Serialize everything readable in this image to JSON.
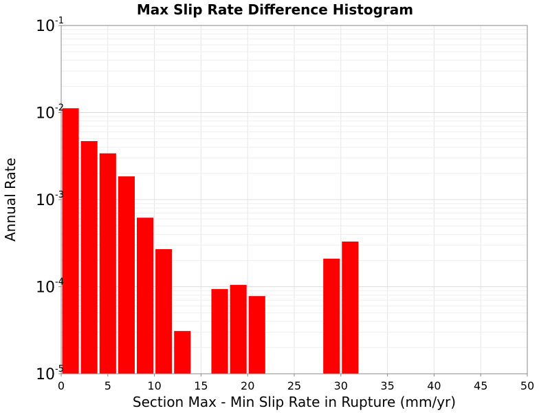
{
  "chart_data": {
    "type": "bar",
    "title": "Max Slip Rate Difference Histogram",
    "xlabel": "Section Max - Min Slip Rate in Rupture (mm/yr)",
    "ylabel": "Annual Rate",
    "xlim": [
      0,
      50
    ],
    "ylim": [
      1e-05,
      0.1
    ],
    "yscale": "log",
    "grid": true,
    "bar_color": "#ff0000",
    "bin_width": 2,
    "x_ticks": [
      "0",
      "5",
      "10",
      "15",
      "20",
      "25",
      "30",
      "35",
      "40",
      "45",
      "50"
    ],
    "y_ticks": [
      {
        "base": "10",
        "exp": "-5"
      },
      {
        "base": "10",
        "exp": "-4"
      },
      {
        "base": "10",
        "exp": "-3"
      },
      {
        "base": "10",
        "exp": "-2"
      },
      {
        "base": "10",
        "exp": "-1"
      }
    ],
    "bins": [
      {
        "x": 1,
        "value": 0.0112
      },
      {
        "x": 3,
        "value": 0.0047
      },
      {
        "x": 5,
        "value": 0.0034
      },
      {
        "x": 7,
        "value": 0.00185
      },
      {
        "x": 9,
        "value": 0.00062
      },
      {
        "x": 11,
        "value": 0.00027
      },
      {
        "x": 13,
        "value": 3.1e-05
      },
      {
        "x": 15,
        "value": 0
      },
      {
        "x": 17,
        "value": 9.4e-05
      },
      {
        "x": 19,
        "value": 0.000105
      },
      {
        "x": 21,
        "value": 7.8e-05
      },
      {
        "x": 23,
        "value": 0
      },
      {
        "x": 25,
        "value": 0
      },
      {
        "x": 27,
        "value": 0
      },
      {
        "x": 29,
        "value": 0.00021
      },
      {
        "x": 31,
        "value": 0.00033
      }
    ]
  }
}
